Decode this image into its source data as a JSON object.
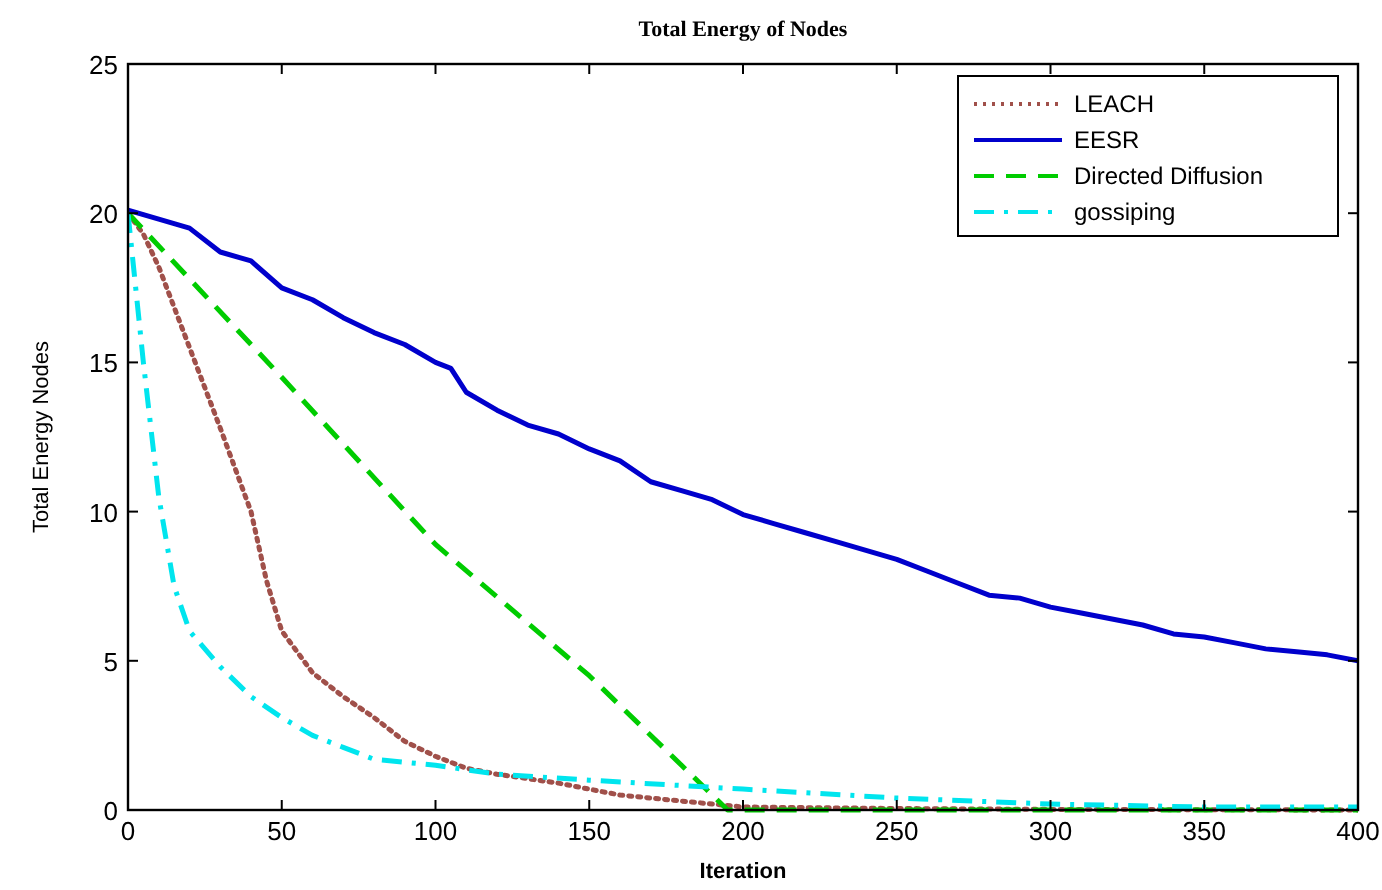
{
  "chart_data": {
    "type": "line",
    "title": "Total Energy of Nodes",
    "xlabel": "Iteration",
    "ylabel": "Total Energy Nodes",
    "xlim": [
      0,
      400
    ],
    "ylim": [
      0,
      25
    ],
    "xticks": [
      0,
      50,
      100,
      150,
      200,
      250,
      300,
      350,
      400
    ],
    "yticks": [
      0,
      5,
      10,
      15,
      20,
      25
    ],
    "grid": false,
    "legend": "top right",
    "marker": "none",
    "series": [
      {
        "name": "LEACH",
        "color": "#a0504a",
        "line_style": "dotted",
        "x": [
          0,
          5,
          10,
          20,
          30,
          40,
          45,
          50,
          60,
          70,
          80,
          90,
          100,
          110,
          120,
          140,
          160,
          180,
          200,
          250,
          300,
          400
        ],
        "values": [
          20,
          19.3,
          18.2,
          15.5,
          12.8,
          10,
          7.7,
          6,
          4.6,
          3.8,
          3.1,
          2.3,
          1.8,
          1.4,
          1.2,
          0.9,
          0.5,
          0.3,
          0.1,
          0.05,
          0.02,
          0
        ]
      },
      {
        "name": "EESR",
        "color": "#0000cc",
        "line_style": "solid",
        "x": [
          0,
          10,
          20,
          30,
          40,
          50,
          60,
          70,
          80,
          90,
          100,
          105,
          110,
          120,
          130,
          140,
          150,
          160,
          170,
          180,
          190,
          200,
          210,
          220,
          230,
          240,
          250,
          260,
          270,
          280,
          290,
          300,
          310,
          320,
          330,
          340,
          350,
          360,
          370,
          380,
          390,
          400
        ],
        "values": [
          20.1,
          19.8,
          19.5,
          18.7,
          18.4,
          17.5,
          17.1,
          16.5,
          16,
          15.6,
          15,
          14.8,
          14,
          13.4,
          12.9,
          12.6,
          12.1,
          11.7,
          11,
          10.7,
          10.4,
          9.9,
          9.6,
          9.3,
          9,
          8.7,
          8.4,
          8,
          7.6,
          7.2,
          7.1,
          6.8,
          6.6,
          6.4,
          6.2,
          5.9,
          5.8,
          5.6,
          5.4,
          5.3,
          5.2,
          5
        ]
      },
      {
        "name": "Directed Diffusion",
        "color": "#00cc00",
        "line_style": "dashed",
        "x": [
          0,
          50,
          100,
          150,
          180,
          195,
          400
        ],
        "values": [
          20,
          14.5,
          8.9,
          4.5,
          1.5,
          0,
          0
        ]
      },
      {
        "name": "gossiping",
        "color": "#00e5ee",
        "line_style": "dashdot",
        "x": [
          0,
          2,
          5,
          10,
          15,
          20,
          30,
          40,
          50,
          60,
          70,
          80,
          100,
          120,
          150,
          200,
          250,
          300,
          350,
          400
        ],
        "values": [
          20,
          18,
          15,
          10.5,
          7.5,
          6,
          4.8,
          3.8,
          3.1,
          2.5,
          2.1,
          1.7,
          1.5,
          1.2,
          1,
          0.7,
          0.4,
          0.2,
          0.1,
          0.1
        ]
      }
    ]
  }
}
